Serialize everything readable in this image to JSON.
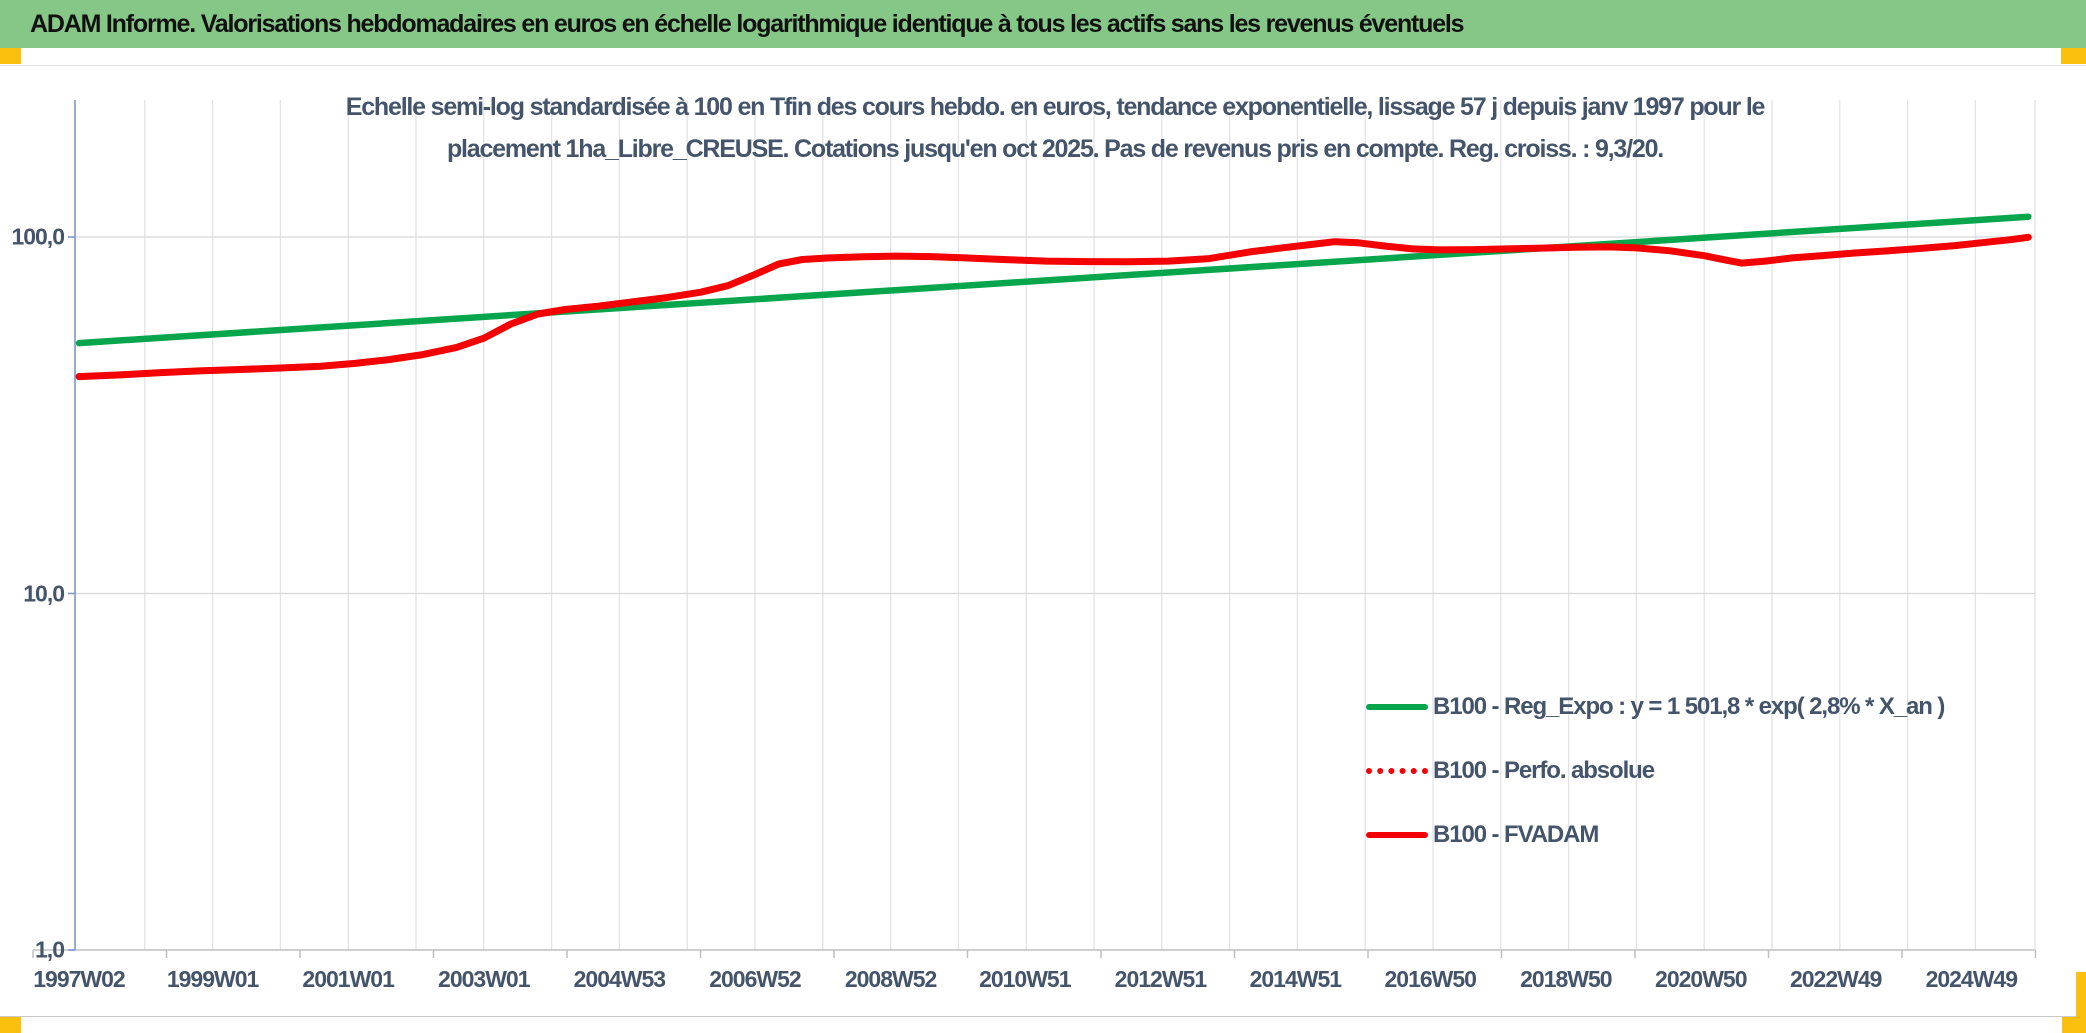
{
  "header": {
    "title": "ADAM Informe. Valorisations hebdomadaires en euros en échelle logarithmique identique à tous les actifs sans les revenus éventuels",
    "background": "#85C786"
  },
  "accents": {
    "corner_yellow": "#FBBF0E",
    "text_blue": "#44546A"
  },
  "chart_data": {
    "type": "line",
    "title_lines": [
      "Echelle semi-log standardisée à 100 en Tfin des cours hebdo. en euros, tendance exponentielle, lissage 57 j depuis janv 1997 pour le",
      "placement 1ha_Libre_CREUSE. Cotations jusqu'en oct 2025. Pas de revenus pris en compte. Reg. croiss. : 9,3/20."
    ],
    "y_axis": {
      "scale": "log",
      "range": [
        1,
        250
      ],
      "ticks": [
        {
          "label": "100,0",
          "value": 100
        },
        {
          "label": "10,0",
          "value": 10
        },
        {
          "label": "1,0",
          "value": 1
        }
      ],
      "axis_color": "#7D97C9"
    },
    "x_axis": {
      "range_years": [
        1997.03,
        2025.78
      ],
      "ticks": [
        {
          "label": "1997W02",
          "year": 1997.03
        },
        {
          "label": "1999W01",
          "year": 1999.0
        },
        {
          "label": "2001W01",
          "year": 2001.0
        },
        {
          "label": "2003W01",
          "year": 2003.0
        },
        {
          "label": "2004W53",
          "year": 2005.0
        },
        {
          "label": "2006W52",
          "year": 2007.0
        },
        {
          "label": "2008W52",
          "year": 2009.0
        },
        {
          "label": "2010W51",
          "year": 2010.98
        },
        {
          "label": "2012W51",
          "year": 2012.98
        },
        {
          "label": "2014W51",
          "year": 2014.97
        },
        {
          "label": "2016W50",
          "year": 2016.96
        },
        {
          "label": "2018W50",
          "year": 2018.96
        },
        {
          "label": "2020W50",
          "year": 2020.95
        },
        {
          "label": "2022W49",
          "year": 2022.94
        },
        {
          "label": "2024W49",
          "year": 2024.94
        }
      ]
    },
    "grid": {
      "vertical_yearly": true,
      "vertical_color": "#E2E2E8",
      "horizontal_at": [
        100,
        10
      ],
      "horizontal_color": "#D8D8D8",
      "baseline_color": "#BFBFBF"
    },
    "legend_position": "inside-bottom-right",
    "series": [
      {
        "name": "B100 - Reg_Expo : y = 1 501,8 * exp( 2,8% *  X_an )",
        "color": "#07A64D",
        "style": "solid",
        "width": 6.5,
        "points": [
          [
            1997.03,
            50.4
          ],
          [
            2025.78,
            114.0
          ]
        ]
      },
      {
        "name": "B100 - Perfo. absolue",
        "color": "#F40000",
        "style": "dotted",
        "width": 5,
        "same_points_as": "B100 - FVADAM"
      },
      {
        "name": "B100 - FVADAM",
        "color": "#F40000",
        "style": "solid",
        "width": 7,
        "points": [
          [
            1997.03,
            40.6
          ],
          [
            1997.6,
            41.0
          ],
          [
            1998.2,
            41.6
          ],
          [
            1998.8,
            42.1
          ],
          [
            1999.4,
            42.5
          ],
          [
            2000.0,
            42.9
          ],
          [
            2000.6,
            43.4
          ],
          [
            2001.1,
            44.2
          ],
          [
            2001.6,
            45.3
          ],
          [
            2002.1,
            46.8
          ],
          [
            2002.6,
            49.0
          ],
          [
            2003.0,
            52.0
          ],
          [
            2003.4,
            57.0
          ],
          [
            2003.8,
            60.8
          ],
          [
            2004.2,
            62.6
          ],
          [
            2004.7,
            64.0
          ],
          [
            2005.2,
            65.8
          ],
          [
            2005.7,
            67.6
          ],
          [
            2006.2,
            70.0
          ],
          [
            2006.6,
            73.0
          ],
          [
            2007.0,
            78.5
          ],
          [
            2007.35,
            84.0
          ],
          [
            2007.7,
            86.5
          ],
          [
            2008.1,
            87.4
          ],
          [
            2008.6,
            88.0
          ],
          [
            2009.1,
            88.4
          ],
          [
            2009.6,
            88.1
          ],
          [
            2010.1,
            87.4
          ],
          [
            2010.7,
            86.4
          ],
          [
            2011.3,
            85.6
          ],
          [
            2011.9,
            85.3
          ],
          [
            2012.5,
            85.2
          ],
          [
            2013.1,
            85.6
          ],
          [
            2013.7,
            87.0
          ],
          [
            2014.3,
            90.8
          ],
          [
            2014.8,
            93.3
          ],
          [
            2015.2,
            95.3
          ],
          [
            2015.55,
            97.0
          ],
          [
            2015.9,
            96.3
          ],
          [
            2016.3,
            94.3
          ],
          [
            2016.7,
            92.6
          ],
          [
            2017.1,
            92.0
          ],
          [
            2017.6,
            92.2
          ],
          [
            2018.1,
            92.6
          ],
          [
            2018.6,
            93.1
          ],
          [
            2019.1,
            93.6
          ],
          [
            2019.6,
            93.8
          ],
          [
            2020.0,
            93.2
          ],
          [
            2020.5,
            91.5
          ],
          [
            2021.0,
            88.6
          ],
          [
            2021.3,
            86.3
          ],
          [
            2021.55,
            84.5
          ],
          [
            2021.9,
            85.6
          ],
          [
            2022.3,
            87.4
          ],
          [
            2022.7,
            88.5
          ],
          [
            2023.2,
            90.1
          ],
          [
            2023.7,
            91.4
          ],
          [
            2024.2,
            92.9
          ],
          [
            2024.7,
            94.6
          ],
          [
            2025.1,
            96.4
          ],
          [
            2025.5,
            98.2
          ],
          [
            2025.78,
            99.8
          ]
        ]
      }
    ]
  }
}
